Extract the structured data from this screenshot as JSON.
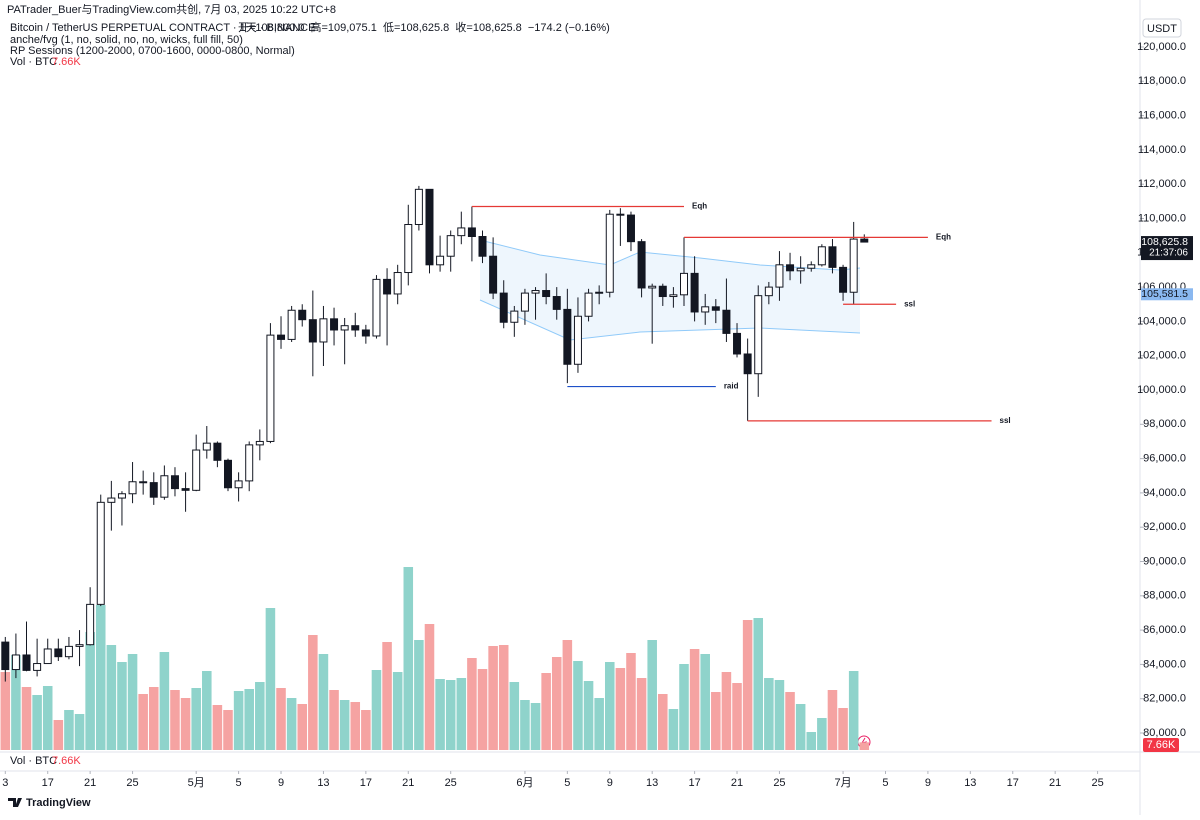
{
  "header": {
    "credit": "PATrader_Buer与TradingView.com共创, 7月 03, 2025 10:22 UTC+8",
    "symbol": "Bitcoin / TetherUS PERPETUAL CONTRACT · 1天 · BINANCE",
    "ohlc": "开=108,800.0  高=109,075.1  低=108,625.8  收=108,625.8  −174.2 (−0.16%)",
    "indicator1": "anche/fvg (1, no, solid, no, no, wicks, full fill, 50)",
    "indicator2": "RP Sessions (1200-2000, 0700-1600, 0000-0800, Normal)",
    "volume_title": "Vol · BTC",
    "volume_value": "7.66K",
    "currency": "USDT"
  },
  "footer": {
    "volume_title": "Vol · BTC",
    "volume_value": "7.66K",
    "volume_badge": "7.66K",
    "brand": "TradingView"
  },
  "chart_data": {
    "type": "candlestick",
    "x": [
      0,
      1,
      2,
      3,
      4,
      5,
      6,
      7,
      8,
      9,
      10,
      11,
      12,
      13,
      14,
      15,
      16,
      17,
      18,
      19,
      20,
      21,
      22,
      23,
      24,
      25,
      26,
      27,
      28,
      29,
      30,
      31,
      32,
      33,
      34,
      35,
      36,
      37,
      38,
      39,
      40,
      41,
      42,
      43,
      44,
      45,
      46,
      47,
      48,
      49,
      50,
      51,
      52,
      53,
      54,
      55,
      56,
      57,
      58,
      59,
      60,
      61,
      62,
      63,
      64,
      65,
      66,
      67,
      68,
      69,
      70,
      71,
      72,
      73,
      74,
      75,
      76,
      77,
      78,
      79,
      80,
      81
    ],
    "open": [
      85300,
      83700,
      84550,
      83650,
      84050,
      84900,
      84450,
      85050,
      85150,
      87500,
      93450,
      93700,
      93950,
      94650,
      94600,
      93750,
      95000,
      94250,
      94150,
      96500,
      96900,
      95900,
      94300,
      94700,
      96800,
      97000,
      103200,
      102950,
      104650,
      104100,
      102800,
      104150,
      103500,
      103750,
      103500,
      103150,
      106450,
      105600,
      106850,
      109650,
      111700,
      107300,
      107800,
      109000,
      109450,
      108950,
      107800,
      105650,
      103950,
      104600,
      105650,
      105800,
      105450,
      104700,
      101500,
      104300,
      105650,
      105700,
      110250,
      110200,
      108650,
      105950,
      106050,
      105450,
      105550,
      106800,
      104550,
      104850,
      104650,
      103300,
      102100,
      100950,
      105500,
      106000,
      107300,
      106950,
      107100,
      107300,
      108350,
      107150,
      105700,
      108800
    ],
    "high": [
      85600,
      85800,
      86500,
      85500,
      85500,
      85500,
      85600,
      86000,
      88500,
      93900,
      94700,
      94100,
      95800,
      95300,
      95200,
      95600,
      95500,
      95200,
      97400,
      97900,
      97000,
      96000,
      95200,
      97000,
      97700,
      103900,
      104300,
      104900,
      105000,
      105800,
      104900,
      104800,
      104200,
      104500,
      103800,
      106700,
      107100,
      107300,
      110800,
      111900,
      111500,
      109000,
      109300,
      110400,
      110700,
      109300,
      108900,
      106400,
      104900,
      105900,
      106000,
      106800,
      106000,
      105900,
      105400,
      105900,
      106100,
      110500,
      110600,
      110400,
      108800,
      106200,
      106200,
      106000,
      108900,
      107800,
      105600,
      105300,
      106500,
      103900,
      103000,
      106100,
      106300,
      108100,
      108000,
      107800,
      107500,
      108500,
      108800,
      107300,
      109800,
      109075.1
    ],
    "low": [
      83000,
      83200,
      83600,
      83300,
      84100,
      84200,
      84300,
      83900,
      85100,
      87400,
      91800,
      92100,
      93400,
      93900,
      93300,
      93600,
      93800,
      92900,
      94100,
      96000,
      95500,
      94100,
      93500,
      94100,
      95900,
      96900,
      102400,
      102800,
      103700,
      100800,
      101400,
      102600,
      101500,
      103100,
      102700,
      103000,
      102600,
      105000,
      106100,
      109300,
      106800,
      106900,
      106900,
      108500,
      107500,
      107400,
      105300,
      103600,
      103100,
      103800,
      104100,
      105000,
      104100,
      100400,
      101000,
      104000,
      105000,
      105400,
      108400,
      108100,
      105400,
      102700,
      104900,
      104800,
      104900,
      104000,
      103800,
      103900,
      102800,
      101900,
      98200,
      99600,
      105000,
      105200,
      106400,
      106200,
      106900,
      107200,
      106800,
      105200,
      105000,
      108625.8
    ],
    "close": [
      83700,
      84550,
      83650,
      84050,
      84900,
      84450,
      85050,
      85150,
      87500,
      93450,
      93700,
      93950,
      94650,
      94600,
      93750,
      95000,
      94250,
      94150,
      96500,
      96900,
      95900,
      94300,
      94700,
      96800,
      97000,
      103200,
      102950,
      104650,
      104100,
      102800,
      104150,
      103500,
      103750,
      103500,
      103150,
      106450,
      105600,
      106850,
      109650,
      111700,
      107300,
      107800,
      109000,
      109450,
      108950,
      107800,
      105650,
      103950,
      104600,
      105650,
      105800,
      105450,
      104700,
      101500,
      104300,
      105650,
      105700,
      110250,
      110200,
      108650,
      105950,
      106050,
      105450,
      105550,
      106800,
      104550,
      104850,
      104650,
      103300,
      102100,
      100950,
      105500,
      106000,
      107300,
      106950,
      107100,
      107300,
      108350,
      107150,
      105700,
      108800,
      108625.8
    ],
    "volume": [
      78000,
      95000,
      63000,
      55000,
      64000,
      30000,
      40000,
      36000,
      118000,
      145000,
      105000,
      88000,
      96000,
      56000,
      63000,
      98000,
      60000,
      52000,
      62000,
      79000,
      45000,
      40000,
      59000,
      61000,
      68000,
      142000,
      62000,
      52000,
      46000,
      115000,
      96000,
      60000,
      50000,
      48000,
      40000,
      80000,
      108000,
      78000,
      183000,
      110000,
      126000,
      71000,
      70000,
      72000,
      92000,
      81000,
      104000,
      105000,
      68000,
      50000,
      47000,
      77000,
      93000,
      110000,
      89000,
      69000,
      52000,
      88000,
      82000,
      97000,
      72000,
      110000,
      56000,
      41000,
      86000,
      101000,
      96000,
      58000,
      78000,
      67000,
      130000,
      132000,
      72000,
      70000,
      58000,
      46000,
      18000,
      32000,
      60000,
      42000,
      79000,
      7660
    ],
    "volume_lim": [
      0,
      200000
    ],
    "up_color": "#ffffff",
    "down_color": "#131722",
    "volume_up_color": "#8fd3cb",
    "volume_down_color": "#f5a3a2",
    "xlim": [
      -0.5,
      107
    ],
    "xticks": [
      {
        "value": 0,
        "label": "3"
      },
      {
        "value": 4,
        "label": "17"
      },
      {
        "value": 8,
        "label": "21"
      },
      {
        "value": 12,
        "label": "25"
      },
      {
        "value": 18,
        "label": "5月"
      },
      {
        "value": 22,
        "label": "5"
      },
      {
        "value": 26,
        "label": "9"
      },
      {
        "value": 30,
        "label": "13"
      },
      {
        "value": 34,
        "label": "17"
      },
      {
        "value": 38,
        "label": "21"
      },
      {
        "value": 42,
        "label": "25"
      },
      {
        "value": 49,
        "label": "6月"
      },
      {
        "value": 53,
        "label": "5"
      },
      {
        "value": 57,
        "label": "9"
      },
      {
        "value": 61,
        "label": "13"
      },
      {
        "value": 65,
        "label": "17"
      },
      {
        "value": 69,
        "label": "21"
      },
      {
        "value": 73,
        "label": "25"
      },
      {
        "value": 79,
        "label": "7月"
      },
      {
        "value": 83,
        "label": "5"
      },
      {
        "value": 87,
        "label": "9"
      },
      {
        "value": 91,
        "label": "13"
      },
      {
        "value": 95,
        "label": "17"
      },
      {
        "value": 99,
        "label": "21"
      },
      {
        "value": 103,
        "label": "25"
      }
    ],
    "ylim": [
      80000,
      120000
    ],
    "yticks": [
      {
        "value": 80000,
        "label": "80,000.0"
      },
      {
        "value": 82000,
        "label": "82,000.0"
      },
      {
        "value": 84000,
        "label": "84,000.0"
      },
      {
        "value": 86000,
        "label": "86,000.0"
      },
      {
        "value": 88000,
        "label": "88,000.0"
      },
      {
        "value": 90000,
        "label": "90,000.0"
      },
      {
        "value": 92000,
        "label": "92,000.0"
      },
      {
        "value": 94000,
        "label": "94,000.0"
      },
      {
        "value": 96000,
        "label": "96,000.0"
      },
      {
        "value": 98000,
        "label": "98,000.0"
      },
      {
        "value": 100000,
        "label": "100,000.0"
      },
      {
        "value": 102000,
        "label": "102,000.0"
      },
      {
        "value": 104000,
        "label": "104,000.0"
      },
      {
        "value": 106000,
        "label": "106,000.0"
      },
      {
        "value": 108000,
        "label": "108,000.0"
      },
      {
        "value": 110000,
        "label": "110,000.0"
      },
      {
        "value": 112000,
        "label": "112,000.0"
      },
      {
        "value": 114000,
        "label": "114,000.0"
      },
      {
        "value": 116000,
        "label": "116,000.0"
      },
      {
        "value": 118000,
        "label": "118,000.0"
      },
      {
        "value": 120000,
        "label": "120,000.0"
      }
    ],
    "grid": false,
    "annotations": [
      {
        "text": "Eqh",
        "value": 110700,
        "x_start": 44,
        "x_end": 64,
        "color": "#e53935"
      },
      {
        "text": "Eqh",
        "value": 108900,
        "x_start": 64,
        "x_end": 87,
        "color": "#e53935"
      },
      {
        "text": "ssl",
        "value": 105000,
        "x_start": 79,
        "x_end": 84,
        "color": "#e53935"
      },
      {
        "text": "raid",
        "value": 100200,
        "x_start": 53,
        "x_end": 67,
        "color": "#1e50c8"
      },
      {
        "text": "ssl",
        "value": 98200,
        "x_start": 70,
        "x_end": 93,
        "color": "#e53935"
      }
    ],
    "price_badges": [
      {
        "value": 108625.8,
        "label": "108,625.8",
        "sub": "21:37:06",
        "color": "#131722"
      },
      {
        "value": 105581.5,
        "label": "105,581.5",
        "color": "#8ab8f0"
      }
    ]
  }
}
